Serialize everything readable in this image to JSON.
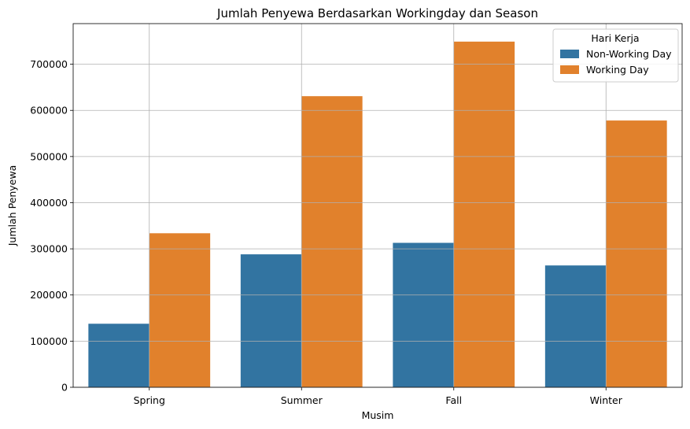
{
  "chart_data": {
    "type": "bar",
    "title": "Jumlah Penyewa Berdasarkan Workingday dan Season",
    "xlabel": "Musim",
    "ylabel": "Jumlah Penyewa",
    "categories": [
      "Spring",
      "Summer",
      "Fall",
      "Winter"
    ],
    "series": [
      {
        "name": "Non-Working Day",
        "color": "#3274a1",
        "values": [
          137683,
          288096,
          312975,
          264009
        ]
      },
      {
        "name": "Working Day",
        "color": "#e1812c",
        "values": [
          333765,
          630771,
          749003,
          578040
        ]
      }
    ],
    "ylim": [
      0,
      788000
    ],
    "yticks": [
      0,
      100000,
      200000,
      300000,
      400000,
      500000,
      600000,
      700000
    ],
    "ytick_labels": [
      "0",
      "100000",
      "200000",
      "300000",
      "400000",
      "500000",
      "600000",
      "700000"
    ],
    "grid": true,
    "legend": {
      "title": "Hari Kerja",
      "position": "top-right"
    }
  }
}
